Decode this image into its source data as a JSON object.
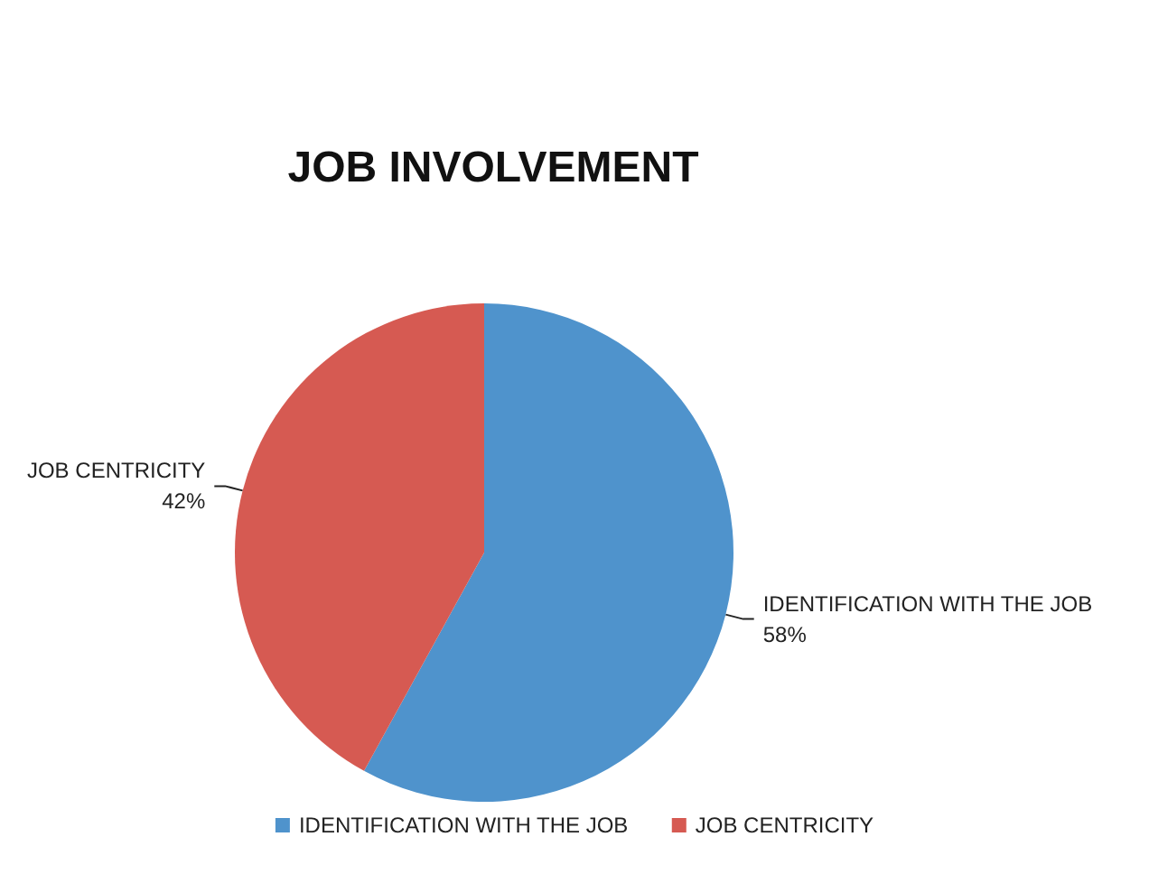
{
  "chart_data": {
    "type": "pie",
    "title": "JOB INVOLVEMENT",
    "categories": [
      "IDENTIFICATION WITH THE JOB",
      "JOB CENTRICITY"
    ],
    "values": [
      58,
      42
    ],
    "colors": [
      "#4f93cc",
      "#d65a52"
    ],
    "value_labels": [
      "58%",
      "42%"
    ],
    "legend": "bottom"
  }
}
